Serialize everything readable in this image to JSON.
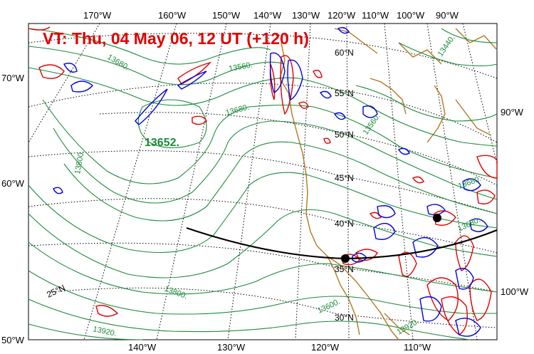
{
  "title": "VT:  Thu, 04 May 06, 12 UT (+120 h)",
  "top_lon_labels": [
    "170°W",
    "160°W",
    "150°W",
    "140°W",
    "130°W",
    "120°W",
    "110°W",
    "100°W",
    "90°W"
  ],
  "bottom_lon_labels": [
    "140°W",
    "130°W",
    "120°W",
    "110°W"
  ],
  "left_labels": [
    "70°W",
    "60°W",
    "50°W"
  ],
  "right_labels": [
    "90°W",
    "100°W"
  ],
  "lat_labels": [
    "60°N",
    "55°N",
    "50°N",
    "45°N",
    "40°N",
    "35°N",
    "30°N",
    "25°N"
  ],
  "contour_labels": [
    "13680.",
    "13560.",
    "13680.",
    "13560.",
    "13440.",
    "13800.",
    "13680.",
    "13680.",
    "13800.",
    "13600.",
    "13920.",
    "13920."
  ],
  "low_center_label": "13652.",
  "colors": {
    "geopotential": "#1a8a3a",
    "positive": "#e00000",
    "negative": "#0000dd",
    "coastline": "#b07820",
    "grid": "#000000",
    "title": "#e00000"
  }
}
